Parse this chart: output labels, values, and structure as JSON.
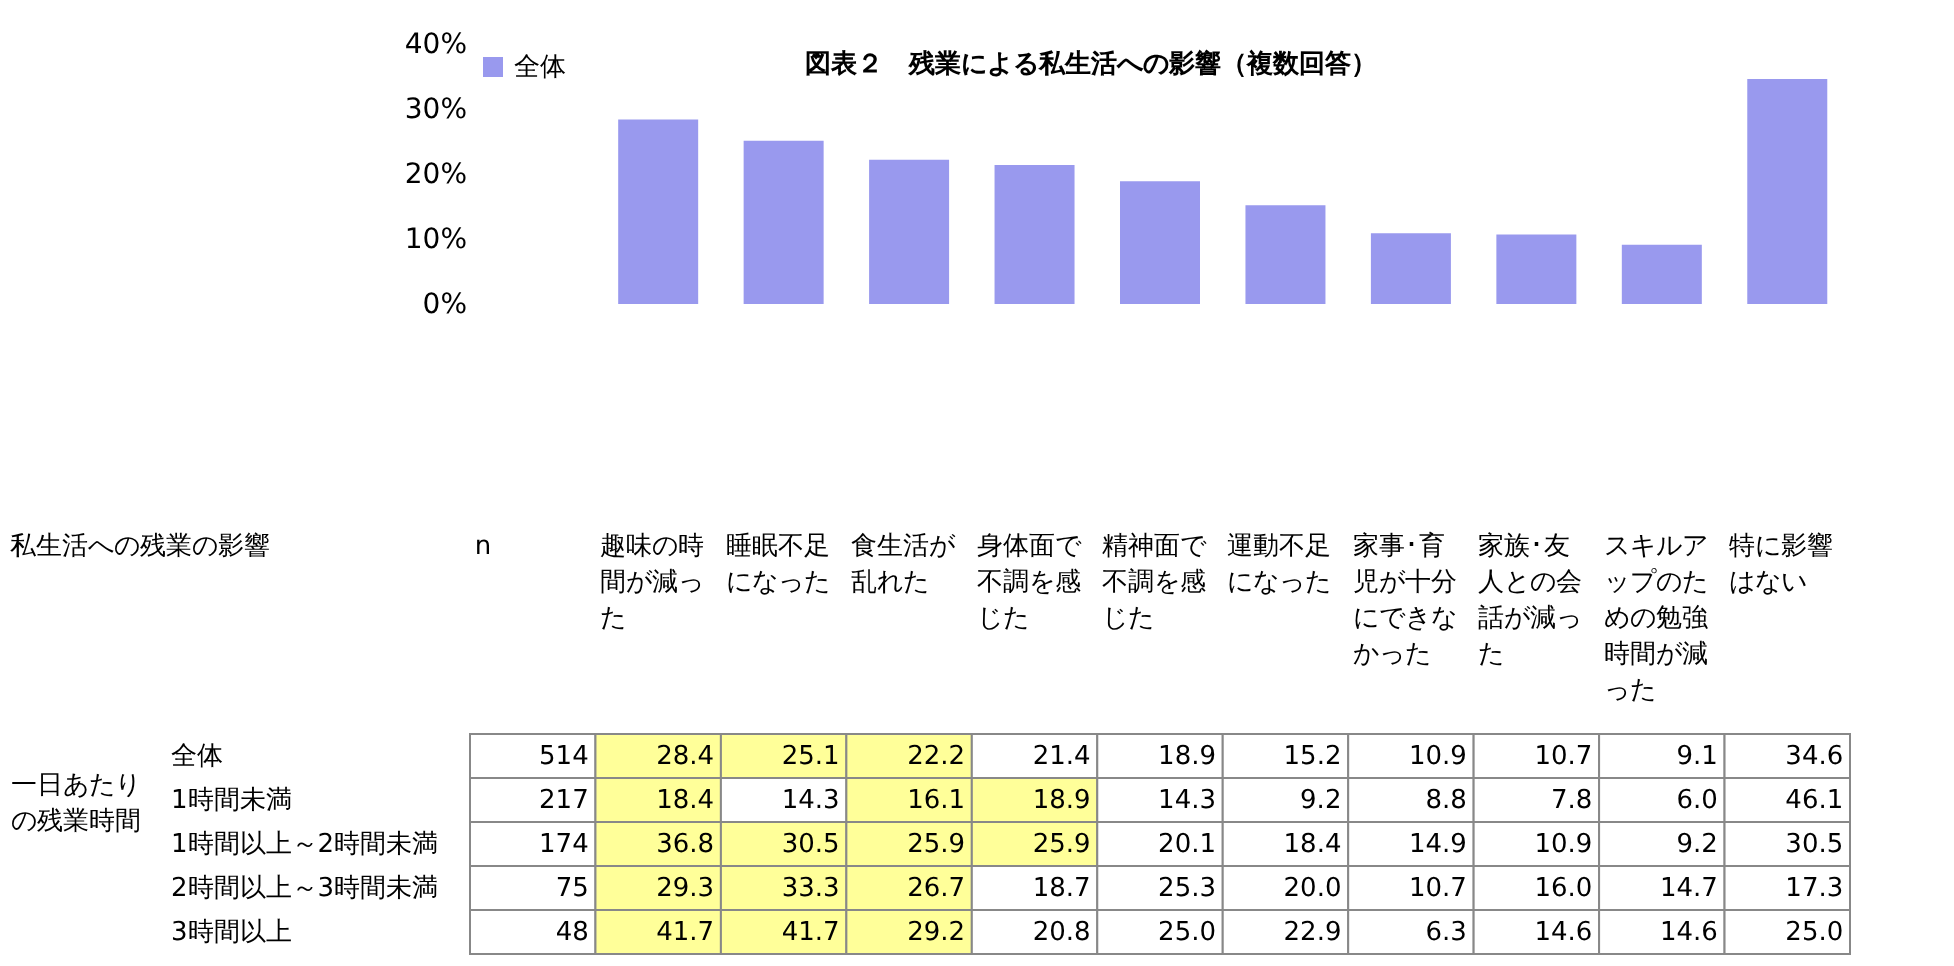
{
  "chart_data": [
    {
      "type": "bar",
      "title": "図表２　残業による私生活への影響（複数回答）",
      "categories": [
        "趣味の時間が減った",
        "睡眠不足になった",
        "食生活が乱れた",
        "身体面で不調を感じた",
        "精神面で不調を感じた",
        "運動不足になった",
        "家事･育児が十分にできなかった",
        "家族･友人との会話が減った",
        "スキルアップのための勉強時間が減った",
        "特に影響はない"
      ],
      "series": [
        {
          "name": "全体",
          "color": "#9999ee",
          "values": [
            28.4,
            25.1,
            22.2,
            21.4,
            18.9,
            15.2,
            10.9,
            10.7,
            9.1,
            34.6
          ]
        }
      ],
      "ylim": [
        0,
        40
      ],
      "yticks": [
        {
          "value": 0,
          "label": "0%"
        },
        {
          "value": 10,
          "label": "10%"
        },
        {
          "value": 20,
          "label": "20%"
        },
        {
          "value": 30,
          "label": "30%"
        },
        {
          "value": 40,
          "label": "40%"
        }
      ],
      "tick_labels": "y",
      "legend": "top left"
    },
    {
      "type": "heatmap",
      "title": "私生活への残業の影響",
      "ylabel": "一日あたりの残業時間",
      "categories": [
        "n",
        "趣味の時間が減った",
        "睡眠不足になった",
        "食生活が乱れた",
        "身体面で不調を感じた",
        "精神面で不調を感じた",
        "運動不足になった",
        "家事･育児が十分にできなかった",
        "家族･友人との会話が減った",
        "スキルアップのための勉強時間が減った",
        "特に影響はない"
      ],
      "data_labels": true,
      "y_categories": [
        "全体",
        "1時間未満",
        "1時間以上～2時間未満",
        "2時間以上～3時間未満",
        "3時間以上"
      ],
      "cells": [
        [
          514,
          28.4,
          25.1,
          22.2,
          21.4,
          18.9,
          15.2,
          10.9,
          10.7,
          9.1,
          34.6
        ],
        [
          217,
          18.4,
          14.3,
          16.1,
          18.9,
          14.3,
          9.2,
          8.8,
          7.8,
          6.0,
          46.1
        ],
        [
          174,
          36.8,
          30.5,
          25.9,
          25.9,
          20.1,
          18.4,
          14.9,
          10.9,
          9.2,
          30.5
        ],
        [
          75,
          29.3,
          33.3,
          26.7,
          18.7,
          25.3,
          20.0,
          10.7,
          16.0,
          14.7,
          17.3
        ],
        [
          48,
          41.7,
          41.7,
          29.2,
          20.8,
          25.0,
          22.9,
          6.3,
          14.6,
          14.6,
          25.0
        ]
      ],
      "cell_labels": [
        [
          "514",
          "28.4",
          "25.1",
          "22.2",
          "21.4",
          "18.9",
          "15.2",
          "10.9",
          "10.7",
          "9.1",
          "34.6"
        ],
        [
          "217",
          "18.4",
          "14.3",
          "16.1",
          "18.9",
          "14.3",
          "9.2",
          "8.8",
          "7.8",
          "6.0",
          "46.1"
        ],
        [
          "174",
          "36.8",
          "30.5",
          "25.9",
          "25.9",
          "20.1",
          "18.4",
          "14.9",
          "10.9",
          "9.2",
          "30.5"
        ],
        [
          "75",
          "29.3",
          "33.3",
          "26.7",
          "18.7",
          "25.3",
          "20.0",
          "10.7",
          "16.0",
          "14.7",
          "17.3"
        ],
        [
          "48",
          "41.7",
          "41.7",
          "29.2",
          "20.8",
          "25.0",
          "22.9",
          "6.3",
          "14.6",
          "14.6",
          "25.0"
        ]
      ]
    }
  ]
}
